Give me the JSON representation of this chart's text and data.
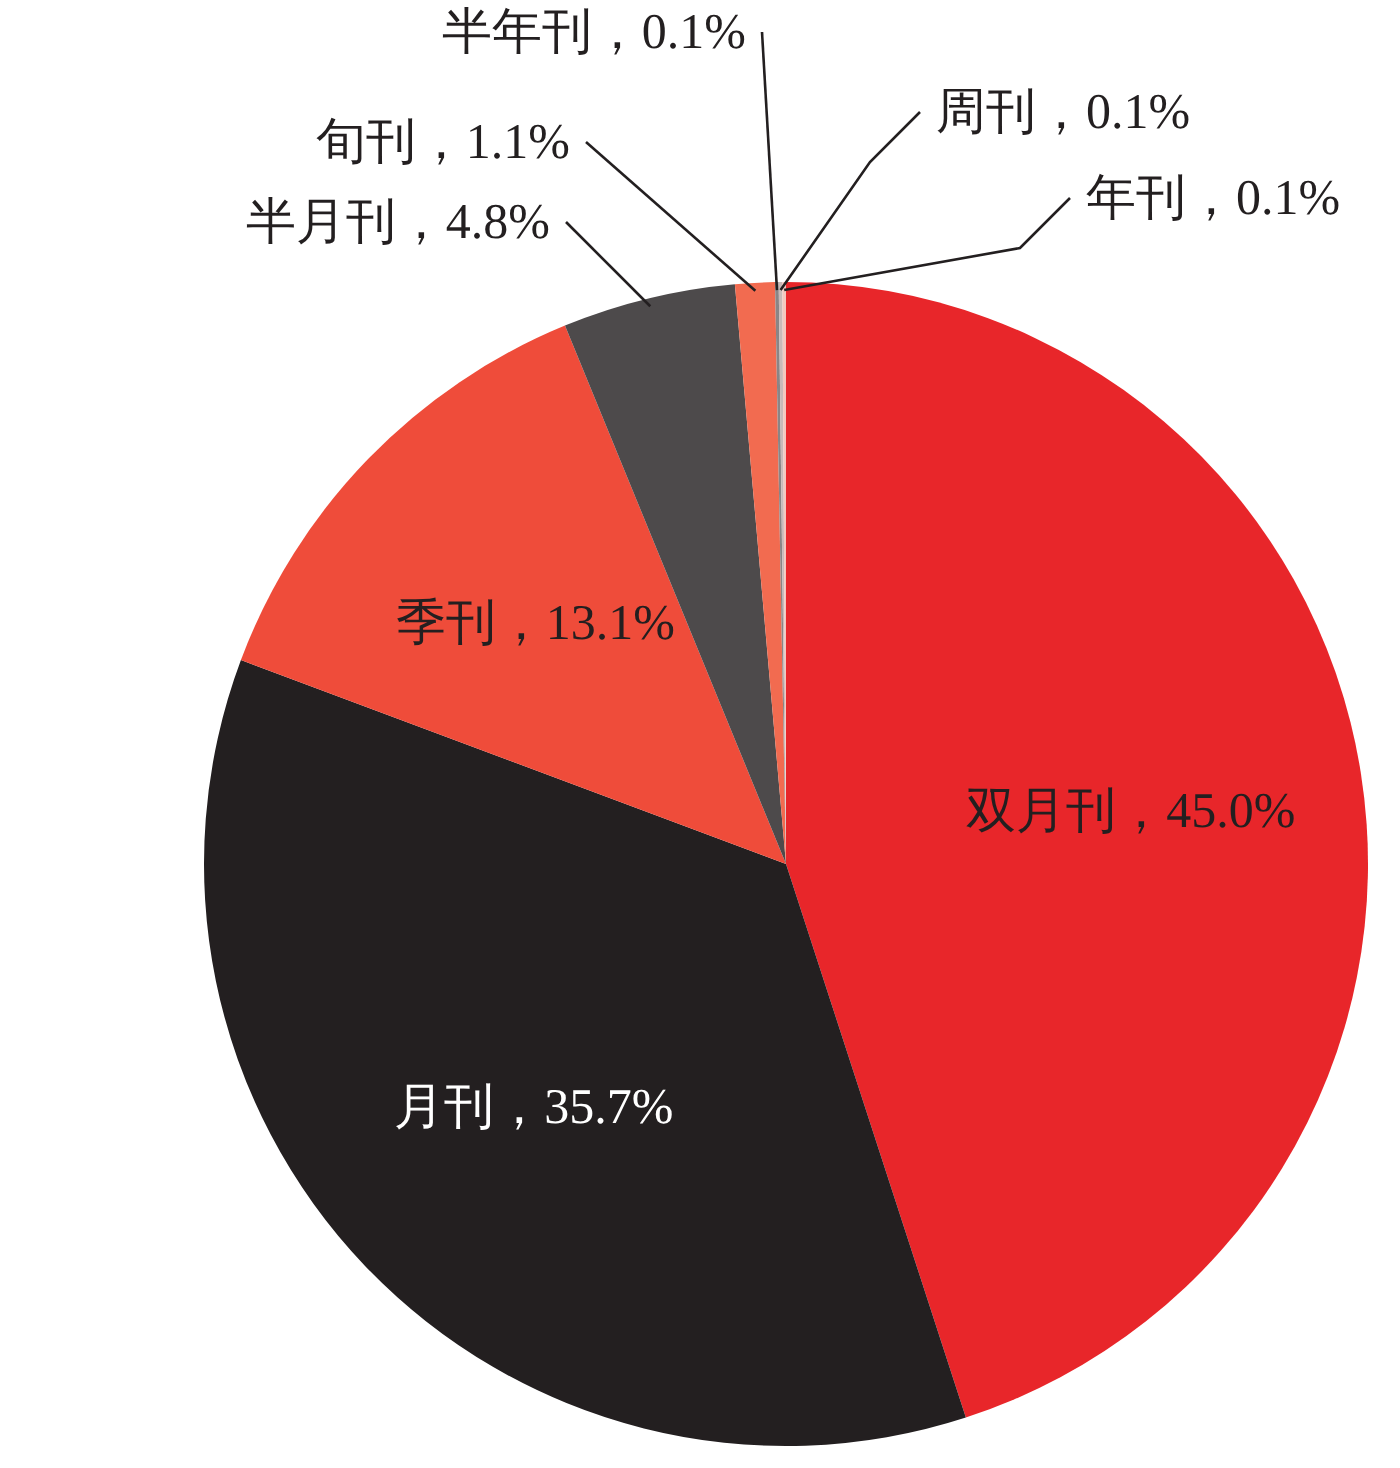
{
  "chart_data": {
    "type": "pie",
    "categories": [
      "双月刊",
      "月刊",
      "季刊",
      "半月刊",
      "旬刊",
      "半年刊",
      "周刊",
      "年刊"
    ],
    "values": [
      45.0,
      35.7,
      13.1,
      4.8,
      1.1,
      0.1,
      0.1,
      0.1
    ],
    "colors": [
      "#e8262a",
      "#231f20",
      "#ef4c3a",
      "#4d4a4b",
      "#f26b50",
      "#8a8586",
      "#c9b9b8",
      "#f3c8bf"
    ],
    "value_labels": [
      "，45.0%",
      "，35.7%",
      "，13.1%",
      "，4.8%",
      "，1.1%",
      "，0.1%",
      "，0.1%",
      "，0.1%"
    ]
  }
}
